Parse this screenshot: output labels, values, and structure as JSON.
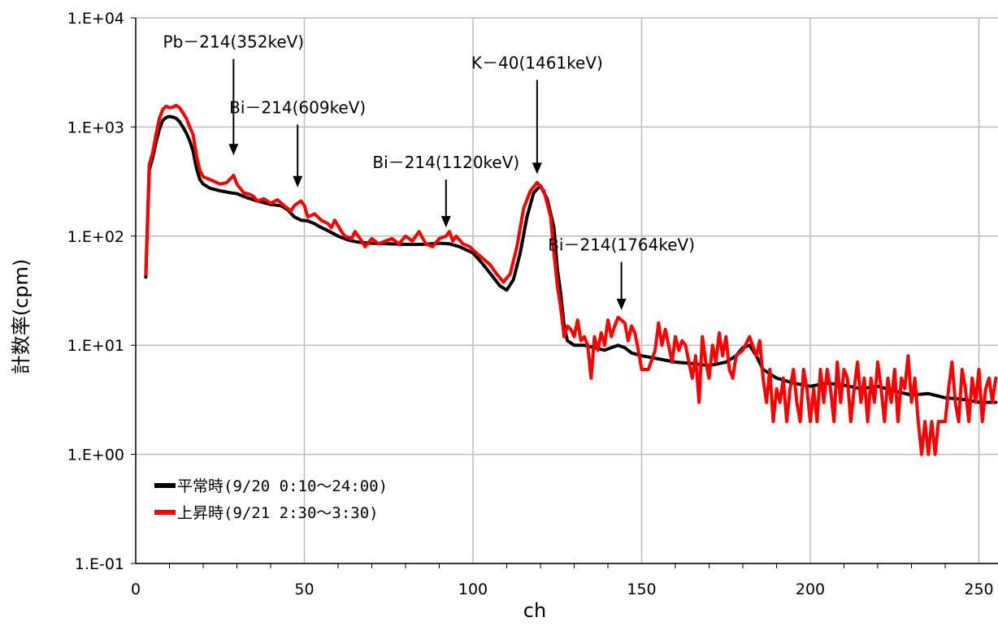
{
  "chart_data": {
    "type": "line",
    "xlabel": "ch",
    "ylabel": "計数率(cpm)",
    "xlim": [
      0,
      256
    ],
    "ylim": [
      0.1,
      10000
    ],
    "yscale": "log",
    "grid": true,
    "x_ticks": [
      "0",
      "50",
      "100",
      "150",
      "200",
      "250"
    ],
    "x_tick_values": [
      0,
      50,
      100,
      150,
      200,
      250
    ],
    "y_ticks": [
      "1.E-01",
      "1.E+00",
      "1.E+01",
      "1.E+02",
      "1.E+03",
      "1.E+04"
    ],
    "y_tick_values": [
      0.1,
      1,
      10,
      100,
      1000,
      10000
    ],
    "legend_position": "bottom-left",
    "series": [
      {
        "name": "平常時(9/20 0:10～24:00)",
        "color": "#000000",
        "points": [
          [
            3,
            42
          ],
          [
            4,
            400
          ],
          [
            5,
            520
          ],
          [
            6,
            720
          ],
          [
            7,
            950
          ],
          [
            8,
            1150
          ],
          [
            9,
            1220
          ],
          [
            10,
            1250
          ],
          [
            11,
            1230
          ],
          [
            12,
            1200
          ],
          [
            13,
            1120
          ],
          [
            14,
            1000
          ],
          [
            15,
            880
          ],
          [
            16,
            750
          ],
          [
            17,
            600
          ],
          [
            18,
            420
          ],
          [
            19,
            330
          ],
          [
            20,
            300
          ],
          [
            22,
            275
          ],
          [
            25,
            260
          ],
          [
            28,
            250
          ],
          [
            30,
            245
          ],
          [
            33,
            225
          ],
          [
            36,
            210
          ],
          [
            40,
            195
          ],
          [
            43,
            190
          ],
          [
            45,
            175
          ],
          [
            47,
            150
          ],
          [
            49,
            140
          ],
          [
            51,
            138
          ],
          [
            53,
            130
          ],
          [
            55,
            120
          ],
          [
            57,
            112
          ],
          [
            60,
            100
          ],
          [
            63,
            92
          ],
          [
            66,
            88
          ],
          [
            70,
            86
          ],
          [
            75,
            85
          ],
          [
            80,
            84
          ],
          [
            85,
            84
          ],
          [
            90,
            86
          ],
          [
            93,
            85
          ],
          [
            96,
            80
          ],
          [
            100,
            70
          ],
          [
            103,
            55
          ],
          [
            106,
            42
          ],
          [
            108,
            35
          ],
          [
            110,
            32
          ],
          [
            112,
            40
          ],
          [
            114,
            70
          ],
          [
            116,
            150
          ],
          [
            118,
            250
          ],
          [
            120,
            290
          ],
          [
            122,
            220
          ],
          [
            124,
            120
          ],
          [
            125,
            50
          ],
          [
            126,
            30
          ],
          [
            127,
            15
          ],
          [
            128,
            11
          ],
          [
            130,
            10
          ],
          [
            133,
            10
          ],
          [
            136,
            9.5
          ],
          [
            139,
            9
          ],
          [
            141,
            9.5
          ],
          [
            143,
            10
          ],
          [
            145,
            9.5
          ],
          [
            147,
            8.5
          ],
          [
            150,
            8
          ],
          [
            155,
            7.5
          ],
          [
            160,
            7
          ],
          [
            165,
            6.8
          ],
          [
            170,
            6.5
          ],
          [
            175,
            7
          ],
          [
            178,
            8
          ],
          [
            180,
            9.5
          ],
          [
            182,
            10
          ],
          [
            184,
            8
          ],
          [
            186,
            6
          ],
          [
            190,
            5
          ],
          [
            195,
            4.5
          ],
          [
            200,
            4.2
          ],
          [
            205,
            4.5
          ],
          [
            210,
            4.3
          ],
          [
            215,
            4
          ],
          [
            220,
            4.2
          ],
          [
            225,
            3.8
          ],
          [
            230,
            3.5
          ],
          [
            235,
            3.6
          ],
          [
            240,
            3.3
          ],
          [
            245,
            3.2
          ],
          [
            250,
            3
          ],
          [
            255,
            3
          ]
        ]
      },
      {
        "name": "上昇時(9/21 2:30～3:30)",
        "color": "#ff0000",
        "points": [
          [
            3,
            45
          ],
          [
            4,
            450
          ],
          [
            5,
            580
          ],
          [
            6,
            850
          ],
          [
            7,
            1200
          ],
          [
            8,
            1450
          ],
          [
            9,
            1550
          ],
          [
            10,
            1500
          ],
          [
            11,
            1520
          ],
          [
            12,
            1580
          ],
          [
            13,
            1500
          ],
          [
            14,
            1350
          ],
          [
            15,
            1200
          ],
          [
            16,
            1000
          ],
          [
            17,
            850
          ],
          [
            18,
            550
          ],
          [
            19,
            400
          ],
          [
            20,
            350
          ],
          [
            21,
            340
          ],
          [
            23,
            320
          ],
          [
            25,
            300
          ],
          [
            27,
            310
          ],
          [
            29,
            360
          ],
          [
            30,
            300
          ],
          [
            32,
            250
          ],
          [
            34,
            240
          ],
          [
            35,
            230
          ],
          [
            36,
            210
          ],
          [
            38,
            220
          ],
          [
            40,
            200
          ],
          [
            42,
            215
          ],
          [
            44,
            190
          ],
          [
            46,
            170
          ],
          [
            47,
            190
          ],
          [
            48,
            200
          ],
          [
            49,
            210
          ],
          [
            50,
            190
          ],
          [
            51,
            150
          ],
          [
            53,
            160
          ],
          [
            55,
            140
          ],
          [
            57,
            130
          ],
          [
            58,
            120
          ],
          [
            59,
            140
          ],
          [
            61,
            110
          ],
          [
            62,
            100
          ],
          [
            64,
            95
          ],
          [
            65,
            110
          ],
          [
            67,
            90
          ],
          [
            68,
            80
          ],
          [
            70,
            95
          ],
          [
            72,
            85
          ],
          [
            74,
            90
          ],
          [
            76,
            95
          ],
          [
            78,
            85
          ],
          [
            80,
            100
          ],
          [
            82,
            90
          ],
          [
            84,
            110
          ],
          [
            86,
            85
          ],
          [
            88,
            80
          ],
          [
            90,
            95
          ],
          [
            92,
            100
          ],
          [
            93,
            110
          ],
          [
            94,
            90
          ],
          [
            95,
            100
          ],
          [
            97,
            85
          ],
          [
            99,
            80
          ],
          [
            101,
            70
          ],
          [
            103,
            62
          ],
          [
            105,
            55
          ],
          [
            107,
            45
          ],
          [
            109,
            38
          ],
          [
            111,
            45
          ],
          [
            113,
            80
          ],
          [
            115,
            180
          ],
          [
            117,
            260
          ],
          [
            119,
            310
          ],
          [
            121,
            260
          ],
          [
            123,
            150
          ],
          [
            124,
            70
          ],
          [
            125,
            35
          ],
          [
            126,
            22
          ],
          [
            127,
            12
          ],
          [
            128,
            15
          ],
          [
            129,
            14
          ],
          [
            130,
            12
          ],
          [
            131,
            17
          ],
          [
            132,
            11
          ],
          [
            133,
            12
          ],
          [
            134,
            10
          ],
          [
            135,
            5
          ],
          [
            136,
            12
          ],
          [
            137,
            9
          ],
          [
            138,
            13
          ],
          [
            139,
            10
          ],
          [
            140,
            17
          ],
          [
            141,
            12
          ],
          [
            142,
            15
          ],
          [
            143,
            18
          ],
          [
            144,
            17
          ],
          [
            145,
            16
          ],
          [
            146,
            11
          ],
          [
            147,
            15
          ],
          [
            148,
            13
          ],
          [
            149,
            9
          ],
          [
            150,
            6
          ],
          [
            152,
            6
          ],
          [
            154,
            9
          ],
          [
            155,
            16
          ],
          [
            156,
            10
          ],
          [
            157,
            14
          ],
          [
            158,
            10
          ],
          [
            159,
            7
          ],
          [
            160,
            12
          ],
          [
            161,
            9
          ],
          [
            162,
            11
          ],
          [
            163,
            10
          ],
          [
            164,
            7
          ],
          [
            165,
            5
          ],
          [
            166,
            8
          ],
          [
            167,
            3
          ],
          [
            168,
            12
          ],
          [
            169,
            7
          ],
          [
            170,
            5
          ],
          [
            171,
            10
          ],
          [
            172,
            7
          ],
          [
            173,
            13
          ],
          [
            174,
            8
          ],
          [
            175,
            12
          ],
          [
            176,
            6
          ],
          [
            177,
            5
          ],
          [
            178,
            8
          ],
          [
            180,
            9
          ],
          [
            182,
            12
          ],
          [
            184,
            8
          ],
          [
            185,
            11
          ],
          [
            186,
            5
          ],
          [
            187,
            3
          ],
          [
            188,
            6
          ],
          [
            189,
            2
          ],
          [
            190,
            4
          ],
          [
            191,
            3
          ],
          [
            192,
            5
          ],
          [
            193,
            2
          ],
          [
            194,
            4
          ],
          [
            195,
            6
          ],
          [
            196,
            3
          ],
          [
            197,
            2
          ],
          [
            198,
            6
          ],
          [
            199,
            4
          ],
          [
            200,
            2
          ],
          [
            201,
            4
          ],
          [
            202,
            2
          ],
          [
            203,
            6
          ],
          [
            204,
            3
          ],
          [
            205,
            6
          ],
          [
            206,
            4
          ],
          [
            207,
            2
          ],
          [
            208,
            7
          ],
          [
            209,
            3
          ],
          [
            210,
            6
          ],
          [
            211,
            5
          ],
          [
            212,
            2
          ],
          [
            213,
            4
          ],
          [
            214,
            7
          ],
          [
            215,
            3
          ],
          [
            216,
            5
          ],
          [
            217,
            2
          ],
          [
            218,
            5
          ],
          [
            219,
            3
          ],
          [
            220,
            7
          ],
          [
            221,
            4
          ],
          [
            222,
            2
          ],
          [
            223,
            5
          ],
          [
            224,
            3
          ],
          [
            225,
            6
          ],
          [
            226,
            2
          ],
          [
            227,
            5
          ],
          [
            228,
            4
          ],
          [
            229,
            8
          ],
          [
            230,
            3
          ],
          [
            231,
            5
          ],
          [
            232,
            2
          ],
          [
            233,
            1
          ],
          [
            234,
            2
          ],
          [
            235,
            1
          ],
          [
            236,
            2
          ],
          [
            237,
            1
          ],
          [
            238,
            2
          ],
          [
            239,
            2
          ],
          [
            240,
            2
          ],
          [
            241,
            4
          ],
          [
            242,
            7
          ],
          [
            243,
            3
          ],
          [
            244,
            2
          ],
          [
            245,
            6
          ],
          [
            246,
            4
          ],
          [
            247,
            2
          ],
          [
            248,
            5
          ],
          [
            249,
            3
          ],
          [
            250,
            6
          ],
          [
            251,
            2
          ],
          [
            252,
            4
          ],
          [
            253,
            5
          ],
          [
            254,
            3
          ],
          [
            255,
            5
          ]
        ]
      }
    ],
    "annotations": [
      {
        "text": "Pb－214(352keV)",
        "arrow_x": 29,
        "arrow_top_y": 4200,
        "arrow_bottom_y": 550
      },
      {
        "text": "Bi－214(609keV)",
        "arrow_x": 48,
        "arrow_top_y": 1050,
        "arrow_bottom_y": 280
      },
      {
        "text": "Bi－214(1120keV)",
        "arrow_x": 92,
        "arrow_top_y": 330,
        "arrow_bottom_y": 120
      },
      {
        "text": "K－40(1461keV)",
        "arrow_x": 119,
        "arrow_top_y": 2700,
        "arrow_bottom_y": 370
      },
      {
        "text": "Bi－214(1764keV)",
        "arrow_x": 144,
        "arrow_top_y": 58,
        "arrow_bottom_y": 21
      }
    ]
  }
}
